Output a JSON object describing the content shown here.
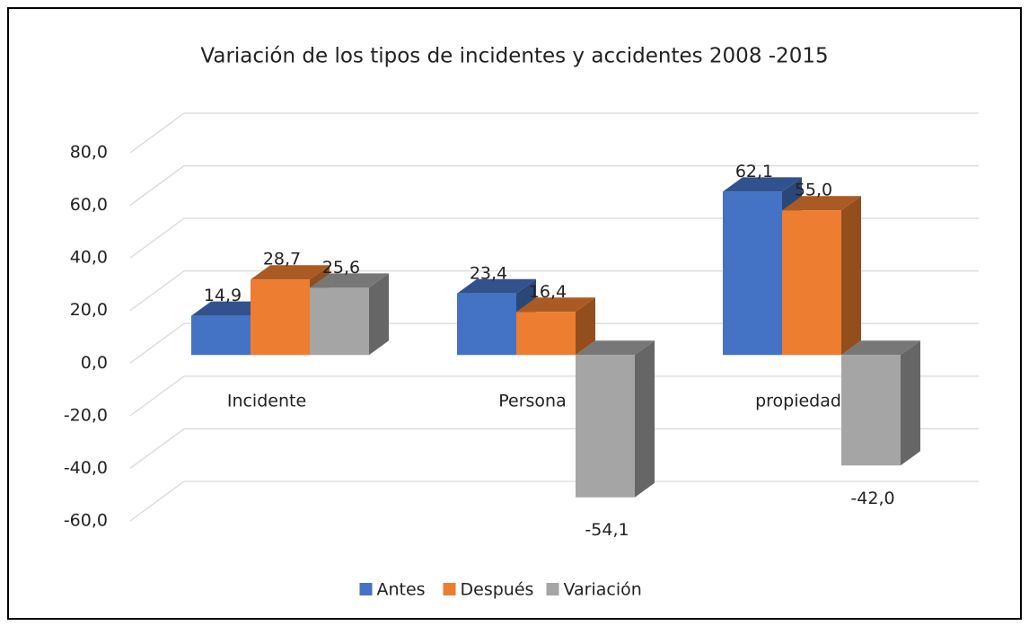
{
  "chart_data": {
    "type": "bar3d",
    "title": "Variación de los tipos de incidentes y accidentes 2008 -2015",
    "categories": [
      "Incidente",
      "Persona",
      "propiedad"
    ],
    "series": [
      {
        "name": "Antes",
        "color": "#4472c4",
        "values": [
          14.9,
          23.4,
          62.1
        ],
        "value_labels": [
          "14,9",
          "23,4",
          "62,1"
        ]
      },
      {
        "name": "Después",
        "color": "#ed7d31",
        "values": [
          28.7,
          16.4,
          55.0
        ],
        "value_labels": [
          "28,7",
          "16,4",
          "55,0"
        ]
      },
      {
        "name": "Variación",
        "color": "#a5a5a5",
        "values": [
          25.6,
          -54.1,
          -42.0
        ],
        "value_labels": [
          "25,6",
          "-54,1",
          "-42,0"
        ]
      }
    ],
    "ylim": [
      -60,
      80
    ],
    "yticks": [
      {
        "value": -60,
        "label": "-60,0"
      },
      {
        "value": -40,
        "label": "-40,0"
      },
      {
        "value": -20,
        "label": "-20,0"
      },
      {
        "value": 0,
        "label": "0,0"
      },
      {
        "value": 20,
        "label": "20,0"
      },
      {
        "value": 40,
        "label": "40,0"
      },
      {
        "value": 60,
        "label": "60,0"
      },
      {
        "value": 80,
        "label": "80,0"
      }
    ],
    "grid": true,
    "legend": "bottom"
  }
}
